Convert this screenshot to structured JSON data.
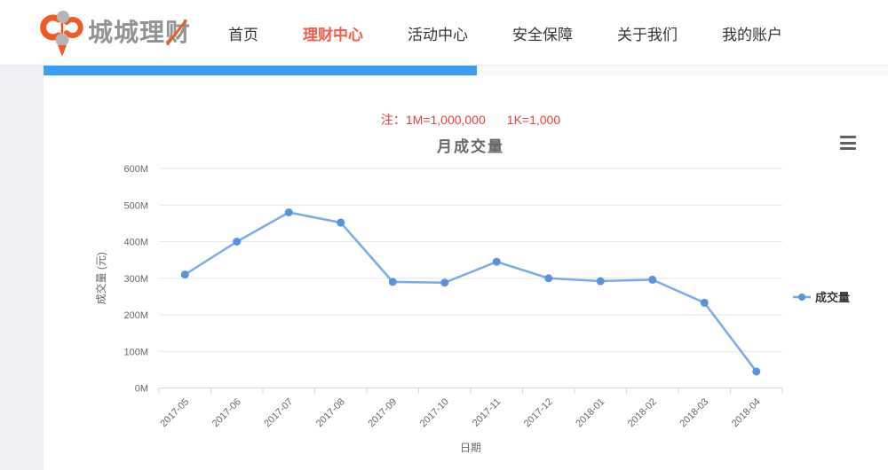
{
  "brand": {
    "name": "城城理财"
  },
  "nav": {
    "items": [
      {
        "label": "首页"
      },
      {
        "label": "理财中心"
      },
      {
        "label": "活动中心"
      },
      {
        "label": "安全保障"
      },
      {
        "label": "关于我们"
      },
      {
        "label": "我的账户"
      }
    ],
    "active_index": 1
  },
  "progress_bar": {
    "fraction": 0.51
  },
  "note": {
    "prefix": "注：",
    "item1": "1M=1,000,000",
    "item2": "1K=1,000"
  },
  "chart_data": {
    "type": "line",
    "title": "月成交量",
    "xlabel": "日期",
    "ylabel": "成交量 (元)",
    "categories": [
      "2017-05",
      "2017-06",
      "2017-07",
      "2017-08",
      "2017-09",
      "2017-10",
      "2017-11",
      "2017-12",
      "2018-01",
      "2018-02",
      "2018-03",
      "2018-04"
    ],
    "series": [
      {
        "name": "成交量",
        "values": [
          310,
          400,
          480,
          452,
          290,
          288,
          345,
          300,
          292,
          296,
          233,
          45
        ]
      }
    ],
    "unit": "M",
    "y_ticks": [
      "0M",
      "100M",
      "200M",
      "300M",
      "400M",
      "500M",
      "600M"
    ],
    "ylim": [
      0,
      600
    ],
    "grid": true,
    "x_label_rotation": -45,
    "legend_position": "right-middle"
  },
  "colors": {
    "progress_blue": "#3b9ef0",
    "nav_active": "#f75b45",
    "note_red": "#ef3b3b",
    "logo_orange": "#f05a28",
    "logo_gray": "#b5b5b5",
    "line": "#76abec",
    "marker": "#5593e0",
    "grid_line": "#e6e6e6",
    "axis_line": "#ccd6eb",
    "axis_label": "#666666",
    "legend_text": "#333333"
  }
}
